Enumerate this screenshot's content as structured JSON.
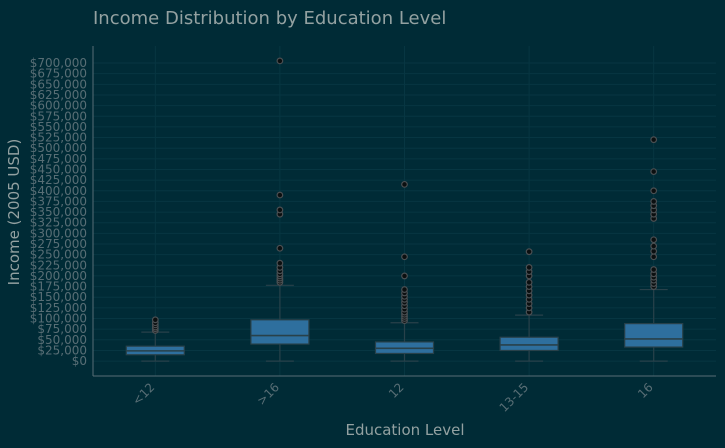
{
  "chart_data": {
    "type": "box",
    "title": "Income Distribution by Education Level",
    "xlabel": "Education Level",
    "ylabel": "Income (2005 USD)",
    "ylim": [
      -35000,
      740000
    ],
    "ytick_values": [
      0,
      25000,
      50000,
      75000,
      100000,
      125000,
      150000,
      175000,
      200000,
      225000,
      250000,
      275000,
      300000,
      325000,
      350000,
      375000,
      400000,
      425000,
      450000,
      475000,
      500000,
      525000,
      550000,
      575000,
      600000,
      625000,
      650000,
      675000,
      700000
    ],
    "ytick_labels": [
      "$0",
      "$25,000",
      "$50,000",
      "$75,000",
      "$100,000",
      "$125,000",
      "$150,000",
      "$175,000",
      "$200,000",
      "$225,000",
      "$250,000",
      "$275,000",
      "$300,000",
      "$325,000",
      "$350,000",
      "$375,000",
      "$400,000",
      "$425,000",
      "$450,000",
      "$475,000",
      "$500,000",
      "$525,000",
      "$550,000",
      "$575,000",
      "$600,000",
      "$625,000",
      "$650,000",
      "$675,000",
      "$700,000"
    ],
    "grid": true,
    "box_color": "#2e6f9e",
    "line_color": "#28414a",
    "categories": [
      "<12",
      ">16",
      "12",
      "13-15",
      "16"
    ],
    "boxes": [
      {
        "category": "<12",
        "whisker_low": 0,
        "q1": 15000,
        "median": 24000,
        "q3": 35000,
        "whisker_high": 68000,
        "outliers": [
          72000,
          76000,
          80000,
          85000,
          90000,
          97000
        ]
      },
      {
        "category": ">16",
        "whisker_low": 0,
        "q1": 40000,
        "median": 60000,
        "q3": 97000,
        "whisker_high": 178000,
        "outliers": [
          185000,
          190000,
          195000,
          200000,
          205000,
          212000,
          220000,
          230000,
          265000,
          345000,
          355000,
          390000,
          705000
        ]
      },
      {
        "category": "12",
        "whisker_low": 0,
        "q1": 18000,
        "median": 30000,
        "q3": 45000,
        "whisker_high": 90000,
        "outliers": [
          95000,
          100000,
          105000,
          110000,
          115000,
          122000,
          130000,
          138000,
          145000,
          152000,
          160000,
          168000,
          200000,
          245000,
          415000
        ]
      },
      {
        "category": "13-15",
        "whisker_low": 0,
        "q1": 25000,
        "median": 38000,
        "q3": 56000,
        "whisker_high": 108000,
        "outliers": [
          115000,
          125000,
          135000,
          145000,
          155000,
          165000,
          175000,
          185000,
          200000,
          210000,
          220000,
          257000
        ]
      },
      {
        "category": "16",
        "whisker_low": 0,
        "q1": 33000,
        "median": 52000,
        "q3": 88000,
        "whisker_high": 168000,
        "outliers": [
          175000,
          182000,
          190000,
          197000,
          205000,
          215000,
          245000,
          258000,
          270000,
          285000,
          335000,
          345000,
          355000,
          365000,
          375000,
          400000,
          445000,
          520000
        ]
      }
    ]
  }
}
